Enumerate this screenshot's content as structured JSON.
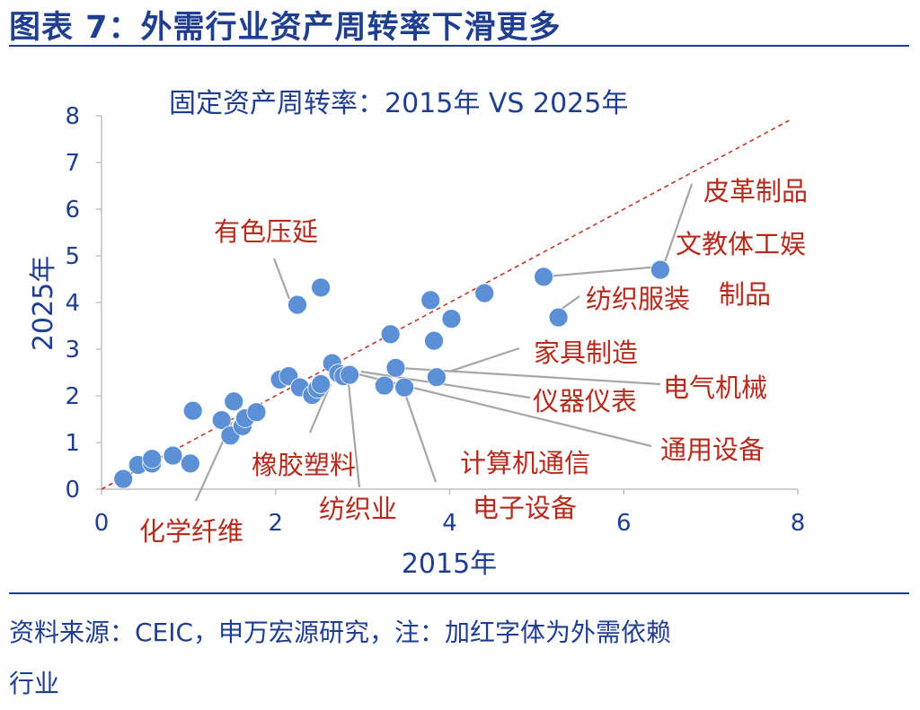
{
  "figure_title": "图表 7：外需行业资产周转率下滑更多",
  "source_line1": "资料来源：CEIC，申万宏源研究，注：加红字体为外需依赖",
  "source_line2": "行业",
  "colors": {
    "navy": "#1f3e8f",
    "dot": "#5b8fd6",
    "red_label": "#b42a1c",
    "leader": "#a6a6a6"
  },
  "chart_data": {
    "type": "scatter",
    "title": "固定资产周转率：2015年 VS 2025年",
    "xlabel": "2015年",
    "ylabel": "2025年",
    "xlim": [
      0,
      8
    ],
    "ylim": [
      0,
      8
    ],
    "xticks": [
      0,
      2,
      4,
      6,
      8
    ],
    "yticks": [
      0,
      1,
      2,
      3,
      4,
      5,
      6,
      7,
      8
    ],
    "reference_line": "y = x (dashed)",
    "grid": false,
    "points": [
      {
        "x": 0.25,
        "y": 0.22
      },
      {
        "x": 0.42,
        "y": 0.52
      },
      {
        "x": 0.58,
        "y": 0.55
      },
      {
        "x": 0.58,
        "y": 0.65
      },
      {
        "x": 0.82,
        "y": 0.72
      },
      {
        "x": 1.02,
        "y": 0.55
      },
      {
        "x": 1.05,
        "y": 1.68
      },
      {
        "x": 1.38,
        "y": 1.48
      },
      {
        "x": 1.48,
        "y": 1.15
      },
      {
        "x": 1.52,
        "y": 1.88
      },
      {
        "x": 1.62,
        "y": 1.35
      },
      {
        "x": 1.65,
        "y": 1.52
      },
      {
        "x": 1.78,
        "y": 1.65
      },
      {
        "x": 2.05,
        "y": 2.35
      },
      {
        "x": 2.15,
        "y": 2.42
      },
      {
        "x": 2.25,
        "y": 3.95
      },
      {
        "x": 2.28,
        "y": 2.18
      },
      {
        "x": 2.42,
        "y": 2.02
      },
      {
        "x": 2.48,
        "y": 2.15
      },
      {
        "x": 2.52,
        "y": 2.25
      },
      {
        "x": 2.52,
        "y": 4.32
      },
      {
        "x": 2.65,
        "y": 2.7
      },
      {
        "x": 2.72,
        "y": 2.48
      },
      {
        "x": 2.78,
        "y": 2.42
      },
      {
        "x": 2.85,
        "y": 2.45
      },
      {
        "x": 3.25,
        "y": 2.22
      },
      {
        "x": 3.32,
        "y": 3.32
      },
      {
        "x": 3.38,
        "y": 2.6
      },
      {
        "x": 3.48,
        "y": 2.18
      },
      {
        "x": 3.78,
        "y": 4.05
      },
      {
        "x": 3.82,
        "y": 3.18
      },
      {
        "x": 3.85,
        "y": 2.4
      },
      {
        "x": 4.02,
        "y": 3.65
      },
      {
        "x": 4.4,
        "y": 4.2
      },
      {
        "x": 5.08,
        "y": 4.55
      },
      {
        "x": 5.25,
        "y": 3.68
      },
      {
        "x": 6.42,
        "y": 4.7
      }
    ],
    "annotations": [
      {
        "text": "有色压延",
        "color": "red"
      },
      {
        "text": "皮革制品",
        "color": "red"
      },
      {
        "text": "文教体工娱",
        "color": "red"
      },
      {
        "text": "制品",
        "color": "red"
      },
      {
        "text": "纺织服装",
        "color": "red"
      },
      {
        "text": "家具制造",
        "color": "red"
      },
      {
        "text": "电气机械",
        "color": "red"
      },
      {
        "text": "仪器仪表",
        "color": "red"
      },
      {
        "text": "通用设备",
        "color": "red"
      },
      {
        "text": "计算机通信",
        "color": "red"
      },
      {
        "text": "电子设备",
        "color": "red"
      },
      {
        "text": "橡胶塑料",
        "color": "red"
      },
      {
        "text": "纺织业",
        "color": "red"
      },
      {
        "text": "化学纤维",
        "color": "red"
      }
    ]
  }
}
